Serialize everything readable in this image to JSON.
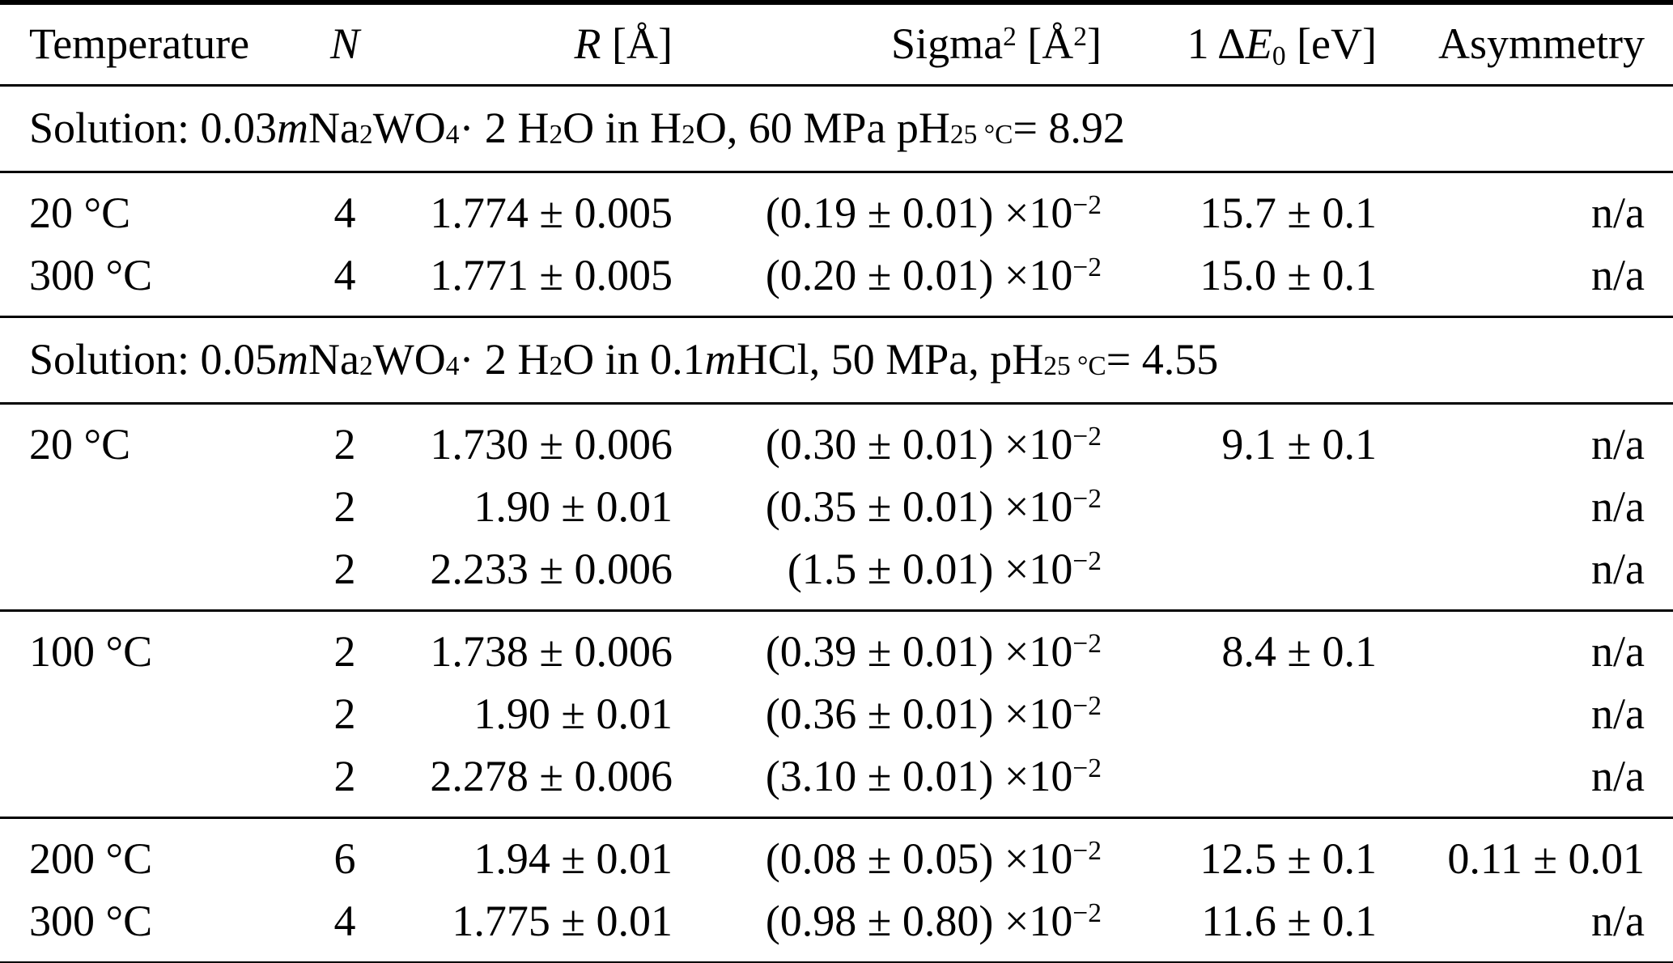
{
  "table": {
    "title": "EXAFS fit parameters table",
    "columns": [
      {
        "id": "temperature",
        "label": "Temperature",
        "rich": "Temperature",
        "align": "left"
      },
      {
        "id": "n",
        "label": "N",
        "rich": "*N*",
        "align": "center"
      },
      {
        "id": "r",
        "label": "R [Å]",
        "rich": "*R* [Å]",
        "align": "right"
      },
      {
        "id": "sigma2",
        "label": "Sigma² [Å²]",
        "rich": "Sigma^{2} [Å^{2}]",
        "align": "right"
      },
      {
        "id": "delta_e0",
        "label": "1 ΔE₀ [eV]",
        "rich": "1 Δ*E*_{0} [eV]",
        "align": "right"
      },
      {
        "id": "asymmetry",
        "label": "Asymmetry",
        "rich": "Asymmetry",
        "align": "right"
      }
    ],
    "sections": [
      {
        "title": "Solution: 0.03 m Na₂WO₄ · 2 H₂O in H₂O, 60 MPa pH₂₅ °C = 8.92",
        "title_rich": "Solution: 0.03 *m* Na_{2}WO_{4} · 2 H_{2}O in H_{2}O, 60 MPa pH_{25 °C} = 8.92",
        "groups": [
          {
            "rows": [
              {
                "temperature": "20 °C",
                "n": "4",
                "r": "1.774 ± 0.005",
                "sigma2": "(0.19 ± 0.01) ×10^{−2}",
                "delta_e0": "15.7 ± 0.1",
                "asymmetry": "n/a"
              },
              {
                "temperature": "300 °C",
                "n": "4",
                "r": "1.771 ± 0.005",
                "sigma2": "(0.20 ± 0.01) ×10^{−2}",
                "delta_e0": "15.0 ± 0.1",
                "asymmetry": "n/a"
              }
            ]
          }
        ]
      },
      {
        "title": "Solution: 0.05 m Na₂WO₄ · 2 H₂O in 0.1 m HCl, 50 MPa, pH₂₅ °C = 4.55",
        "title_rich": "Solution: 0.05 *m* Na_{2}WO_{4} · 2 H_{2}O in 0.1 *m* HCl, 50 MPa, pH_{25 °C} = 4.55",
        "groups": [
          {
            "rows": [
              {
                "temperature": "20 °C",
                "n": "2",
                "r": "1.730 ± 0.006",
                "sigma2": "(0.30 ± 0.01) ×10^{−2}",
                "delta_e0": "9.1 ± 0.1",
                "asymmetry": "n/a"
              },
              {
                "temperature": "",
                "n": "2",
                "r": "1.90 ± 0.01",
                "sigma2": "(0.35 ± 0.01) ×10^{−2}",
                "delta_e0": "",
                "asymmetry": "n/a"
              },
              {
                "temperature": "",
                "n": "2",
                "r": "2.233 ± 0.006",
                "sigma2": "(1.5 ± 0.01) ×10^{−2}",
                "delta_e0": "",
                "asymmetry": "n/a"
              }
            ]
          },
          {
            "rows": [
              {
                "temperature": "100 °C",
                "n": "2",
                "r": "1.738 ± 0.006",
                "sigma2": "(0.39 ± 0.01) ×10^{−2}",
                "delta_e0": "8.4 ± 0.1",
                "asymmetry": "n/a"
              },
              {
                "temperature": "",
                "n": "2",
                "r": "1.90 ± 0.01",
                "sigma2": "(0.36 ± 0.01) ×10^{−2}",
                "delta_e0": "",
                "asymmetry": "n/a"
              },
              {
                "temperature": "",
                "n": "2",
                "r": "2.278 ± 0.006",
                "sigma2": "(3.10 ± 0.01) ×10^{−2}",
                "delta_e0": "",
                "asymmetry": "n/a"
              }
            ]
          },
          {
            "rows": [
              {
                "temperature": "200 °C",
                "n": "6",
                "r": "1.94 ± 0.01",
                "sigma2": "(0.08 ± 0.05) ×10^{−2}",
                "delta_e0": "12.5 ± 0.1",
                "asymmetry": "0.11 ± 0.01"
              },
              {
                "temperature": "300 °C",
                "n": "4",
                "r": "1.775 ± 0.01",
                "sigma2": "(0.98 ± 0.80) ×10^{−2}",
                "delta_e0": "11.6 ± 0.1",
                "asymmetry": "n/a"
              }
            ]
          }
        ]
      }
    ]
  }
}
